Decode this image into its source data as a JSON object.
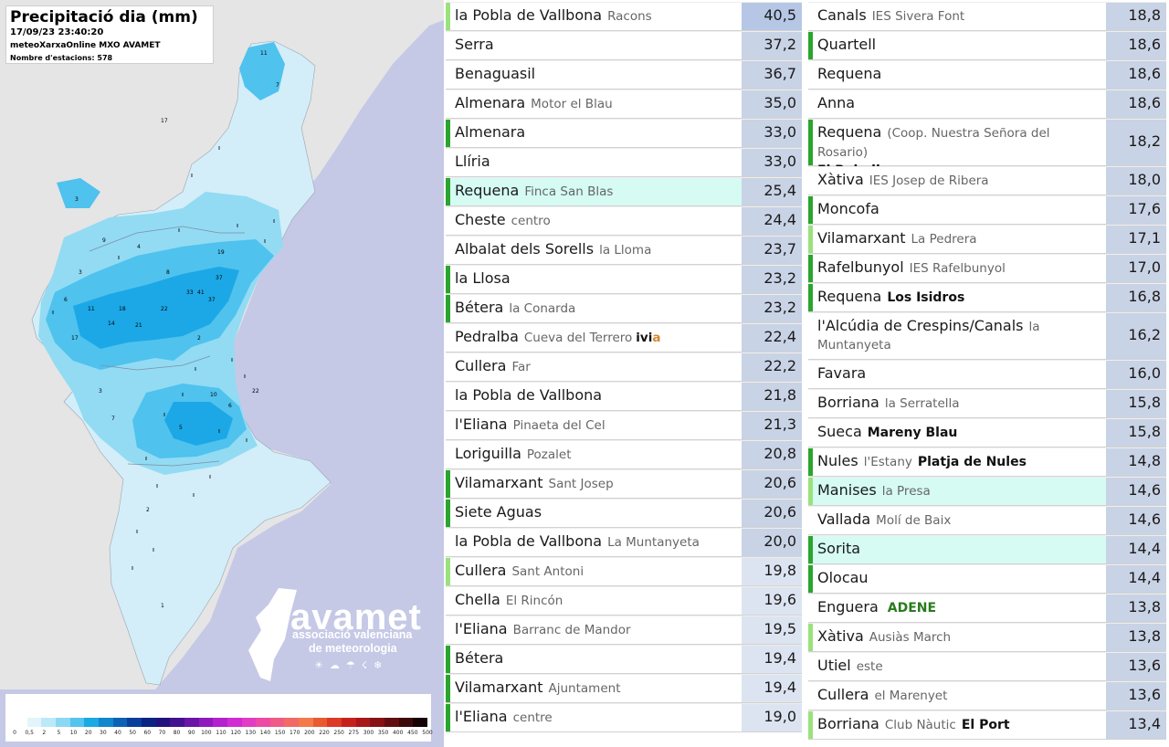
{
  "map": {
    "title": "Precipitació dia (mm)",
    "timestamp": "17/09/23 23:40:20",
    "source": "meteoXarxaOnline MXO AVAMET",
    "station_count": "Nombre d'estacions: 578",
    "logo": {
      "word": "avamet",
      "subtitle_line1": "associació valenciana",
      "subtitle_line2": "de meteorologia"
    },
    "colors": {
      "sea": "#c5c9e6",
      "land_outside": "#e6e6e6",
      "region_dry": "#d3eef8",
      "rain_light": "#92dbf3",
      "rain_medium": "#4fc2ee",
      "rain_heavy": "#1ca8e6"
    },
    "station_labels": [
      "11",
      "7",
      "17",
      "3",
      "4",
      "9",
      "6",
      "11",
      "3",
      "37",
      "33",
      "41",
      "37",
      "19",
      "8",
      "22",
      "21",
      "14",
      "18",
      "17",
      "2",
      "3",
      "7",
      "22",
      "10",
      "6",
      "5",
      "2",
      "1"
    ],
    "legend": {
      "labels": [
        "0",
        "0,5",
        "2",
        "5",
        "10",
        "20",
        "30",
        "40",
        "50",
        "60",
        "70",
        "80",
        "90",
        "100",
        "110",
        "120",
        "130",
        "140",
        "150",
        "170",
        "200",
        "220",
        "250",
        "275",
        "300",
        "350",
        "400",
        "450",
        "500"
      ],
      "colors": [
        "#ffffff",
        "#e3f5fb",
        "#bce9f8",
        "#8ad8f3",
        "#53c4ee",
        "#1ba9e4",
        "#0f86cd",
        "#0b62b5",
        "#083f9c",
        "#0a2484",
        "#22127b",
        "#43108f",
        "#6a14a7",
        "#9019bd",
        "#b420cc",
        "#d22ad3",
        "#e23cc3",
        "#ec4aa6",
        "#f05a86",
        "#f26a66",
        "#f27a4b",
        "#ea5a31",
        "#dc3a24",
        "#c6221c",
        "#a81719",
        "#861214",
        "#620e10",
        "#3c090a",
        "#150202"
      ]
    },
    "compass_icons": [
      "sun-icon",
      "cloud-icon",
      "rain-icon",
      "storm-icon",
      "snow-icon"
    ]
  },
  "table": {
    "column1": [
      {
        "name": "la Pobla de Vallbona",
        "sub": "Racons",
        "value": "40,5",
        "marker": "#9ae27c",
        "val_style": "top"
      },
      {
        "name": "Serra",
        "value": "37,2"
      },
      {
        "name": "Benaguasil",
        "value": "36,7"
      },
      {
        "name": "Almenara",
        "sub": "Motor el Blau",
        "value": "35,0"
      },
      {
        "name": "Almenara",
        "value": "33,0",
        "marker": "#2aa52e"
      },
      {
        "name": "Llíria",
        "value": "33,0"
      },
      {
        "name": "Requena",
        "sub": "Finca San Blas",
        "value": "25,4",
        "marker": "#2aa52e",
        "highlight": true
      },
      {
        "name": "Cheste",
        "sub": "centro",
        "value": "24,4"
      },
      {
        "name": "Albalat dels Sorells",
        "sub": "la Lloma",
        "value": "23,7"
      },
      {
        "name": "la Llosa",
        "value": "23,2",
        "marker": "#2aa52e"
      },
      {
        "name": "Bétera",
        "sub": "la Conarda",
        "value": "23,2",
        "marker": "#2aa52e"
      },
      {
        "name": "Pedralba",
        "sub": "Cueva del Terrero",
        "extra_bold": "ivi",
        "extra_orange": "a",
        "value": "22,4"
      },
      {
        "name": "Cullera",
        "sub": "Far",
        "value": "22,2"
      },
      {
        "name": "la Pobla de Vallbona",
        "value": "21,8"
      },
      {
        "name": "l'Eliana",
        "sub": "Pinaeta del Cel",
        "value": "21,3"
      },
      {
        "name": "Loriguilla",
        "sub": "Pozalet",
        "value": "20,8"
      },
      {
        "name": "Vilamarxant",
        "sub": "Sant Josep",
        "value": "20,6",
        "marker": "#2aa52e"
      },
      {
        "name": "Siete Aguas",
        "value": "20,6",
        "marker": "#2aa52e"
      },
      {
        "name": "la Pobla de Vallbona",
        "sub": "La Muntanyeta",
        "value": "20,0"
      },
      {
        "name": "Cullera",
        "sub": "Sant Antoni",
        "value": "19,8",
        "marker": "#9ae27c",
        "val_style": "light"
      },
      {
        "name": "Chella",
        "sub": "El Rincón",
        "value": "19,6",
        "val_style": "light"
      },
      {
        "name": "l'Eliana",
        "sub": "Barranc de Mandor",
        "value": "19,5",
        "val_style": "light"
      },
      {
        "name": "Bétera",
        "value": "19,4",
        "marker": "#2aa52e",
        "val_style": "light"
      },
      {
        "name": "Vilamarxant",
        "sub": "Ajuntament",
        "value": "19,4",
        "marker": "#2aa52e",
        "val_style": "light"
      },
      {
        "name": "l'Eliana",
        "sub": "centre",
        "value": "19,0",
        "marker": "#2aa52e",
        "val_style": "light"
      }
    ],
    "column2": [
      {
        "name": "Canals",
        "sub": "IES Sivera Font",
        "value": "18,8"
      },
      {
        "name": "Quartell",
        "value": "18,6",
        "marker": "#2aa52e"
      },
      {
        "name": "Requena",
        "value": "18,6"
      },
      {
        "name": "Anna",
        "value": "18,6"
      },
      {
        "name": "Requena",
        "sub": "(Coop. Nuestra Señora del Rosario)",
        "line2_bold": "El Rebollar",
        "value": "18,2",
        "marker": "#2aa52e",
        "tall": true
      },
      {
        "name": "Xàtiva",
        "sub": "IES Josep de Ribera",
        "value": "18,0"
      },
      {
        "name": "Moncofa",
        "value": "17,6",
        "marker": "#2aa52e"
      },
      {
        "name": "Vilamarxant",
        "sub": "La Pedrera",
        "value": "17,1",
        "marker": "#9ae27c"
      },
      {
        "name": "Rafelbunyol",
        "sub": "IES Rafelbunyol",
        "value": "17,0",
        "marker": "#2aa52e"
      },
      {
        "name": "Requena",
        "bold": "Los Isidros",
        "value": "16,8",
        "marker": "#2aa52e"
      },
      {
        "name": "l'Alcúdia de Crespins/Canals",
        "sub": "la",
        "line2_sub": "Muntanyeta",
        "value": "16,2",
        "tall": true
      },
      {
        "name": "Favara",
        "value": "16,0"
      },
      {
        "name": "Borriana",
        "sub": "la Serratella",
        "value": "15,8"
      },
      {
        "name": "Sueca",
        "bold": "Mareny Blau",
        "value": "15,8"
      },
      {
        "name": "Nules",
        "sub": "l'Estany",
        "bold": "Platja de Nules",
        "value": "14,8",
        "marker": "#2aa52e"
      },
      {
        "name": "Manises",
        "sub": "la Presa",
        "value": "14,6",
        "marker": "#9ae27c",
        "highlight": true
      },
      {
        "name": "Vallada",
        "sub": "Molí de Baix",
        "value": "14,6"
      },
      {
        "name": "Sorita",
        "value": "14,4",
        "marker": "#2aa52e",
        "highlight": true
      },
      {
        "name": "Olocau",
        "value": "14,4",
        "marker": "#2aa52e"
      },
      {
        "name": "Enguera",
        "green": "ADENE",
        "value": "13,8"
      },
      {
        "name": "Xàtiva",
        "sub": "Ausiàs March",
        "value": "13,8",
        "marker": "#9ae27c"
      },
      {
        "name": "Utiel",
        "sub": "este",
        "value": "13,6"
      },
      {
        "name": "Cullera",
        "sub": "el Marenyet",
        "value": "13,6"
      },
      {
        "name": "Borriana",
        "sub": "Club Nàutic",
        "bold": "El Port",
        "value": "13,4",
        "marker": "#9ae27c"
      }
    ]
  }
}
